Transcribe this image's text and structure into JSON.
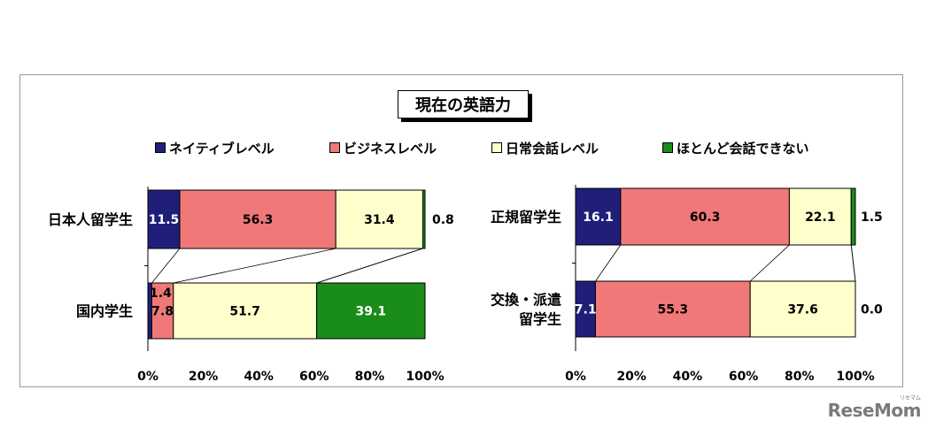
{
  "title": "現在の英語力",
  "colors": {
    "native": "#1f1f7a",
    "business": "#f07878",
    "daily": "#ffffcc",
    "none": "#1a8c1a"
  },
  "legend": [
    {
      "label": "ネイティブレベル",
      "key": "native"
    },
    {
      "label": "ビジネスレベル",
      "key": "business"
    },
    {
      "label": "日常会話レベル",
      "key": "daily"
    },
    {
      "label": "ほとんど会話できない",
      "key": "none"
    }
  ],
  "chart_data": [
    {
      "type": "bar",
      "orientation": "horizontal-stacked-100",
      "categories": [
        "日本人留学生",
        "国内学生"
      ],
      "series": [
        {
          "name": "ネイティブレベル",
          "values": [
            11.5,
            1.4
          ]
        },
        {
          "name": "ビジネスレベル",
          "values": [
            56.3,
            7.8
          ]
        },
        {
          "name": "日常会話レベル",
          "values": [
            31.4,
            51.7
          ]
        },
        {
          "name": "ほとんど会話できない",
          "values": [
            0.8,
            39.1
          ]
        }
      ],
      "xlim": [
        0,
        100
      ],
      "ticks": [
        "0%",
        "20%",
        "40%",
        "60%",
        "80%",
        "100%"
      ]
    },
    {
      "type": "bar",
      "orientation": "horizontal-stacked-100",
      "categories": [
        "正規留学生",
        "交換・派遣留学生"
      ],
      "category_lines": [
        [
          "正規留学生"
        ],
        [
          "交換・派遣",
          "留学生"
        ]
      ],
      "series": [
        {
          "name": "ネイティブレベル",
          "values": [
            16.1,
            7.1
          ]
        },
        {
          "name": "ビジネスレベル",
          "values": [
            60.3,
            55.3
          ]
        },
        {
          "name": "日常会話レベル",
          "values": [
            22.1,
            37.6
          ]
        },
        {
          "name": "ほとんど会話できない",
          "values": [
            1.5,
            0.0
          ]
        }
      ],
      "xlim": [
        0,
        100
      ],
      "ticks": [
        "0%",
        "20%",
        "40%",
        "60%",
        "80%",
        "100%"
      ]
    }
  ],
  "watermark": {
    "text": "ReseMom",
    "ruby": "リセマム"
  }
}
